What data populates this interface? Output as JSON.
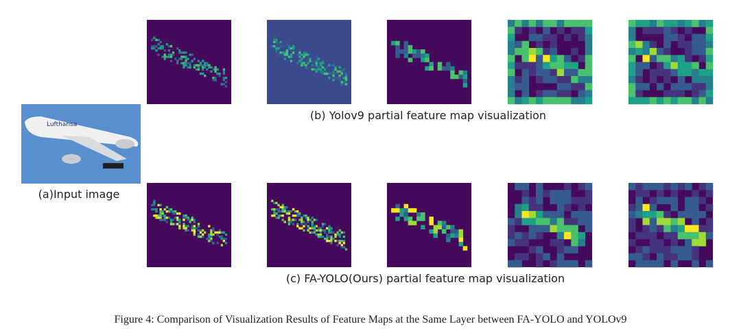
{
  "input": {
    "label": "(a)Input image"
  },
  "rows": [
    {
      "caption": "(b) Yolov9 partial feature map visualization"
    },
    {
      "caption": "(c) FA-YOLO(Ours) partial feature map visualization"
    }
  ],
  "figure_caption": "Figure 4: Comparison of Visualization Results of Feature Maps at the Same Layer between FA-YOLO and YOLOv9"
}
